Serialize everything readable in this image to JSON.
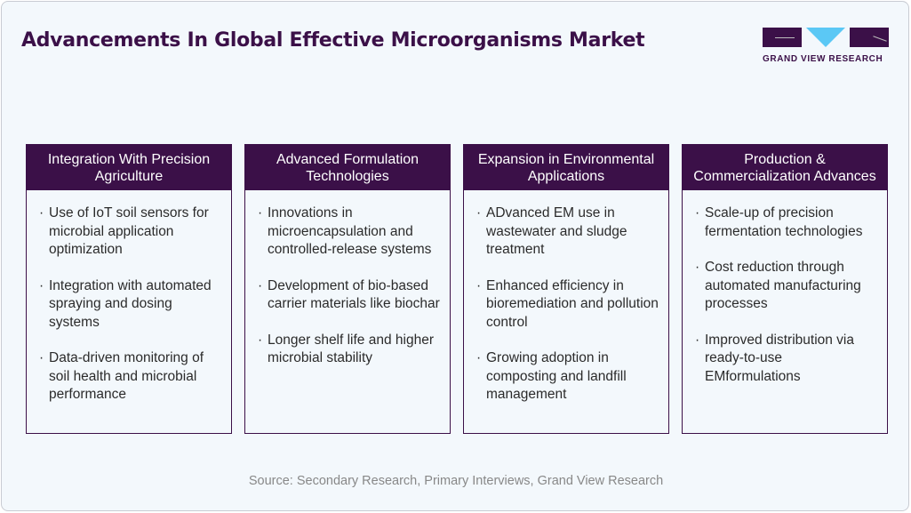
{
  "title": "Advancements In Global Effective Microorganisms Market",
  "logo": {
    "text": "GRAND VIEW RESEARCH",
    "colors": {
      "dark": "#3b1048",
      "accent": "#5bc8f5"
    }
  },
  "cards": [
    {
      "header": "Integration With Precision Agriculture",
      "items": [
        "Use of IoT soil sensors for microbial application optimization",
        "Integration with automated spraying and dosing systems",
        "Data-driven monitoring of soil health and microbial performance"
      ]
    },
    {
      "header": "Advanced Formulation Technologies",
      "items": [
        "Innovations in microencapsulation and controlled-release systems",
        "Development of bio-based carrier materials like biochar",
        "Longer shelf life and higher microbial stability"
      ]
    },
    {
      "header": "Expansion in Environmental Applications",
      "items": [
        "ADvanced EM use in wastewater and sludge treatment",
        "Enhanced efficiency in bioremediation and pollution control",
        "Growing adoption in composting and landfill management"
      ]
    },
    {
      "header": "Production & Commercialization Advances",
      "items": [
        "Scale-up of precision fermentation technologies",
        "Cost reduction through automated manufacturing processes",
        "Improved distribution via ready-to-use EMformulations"
      ]
    }
  ],
  "source": "Source: Secondary Research, Primary Interviews, Grand View Research"
}
